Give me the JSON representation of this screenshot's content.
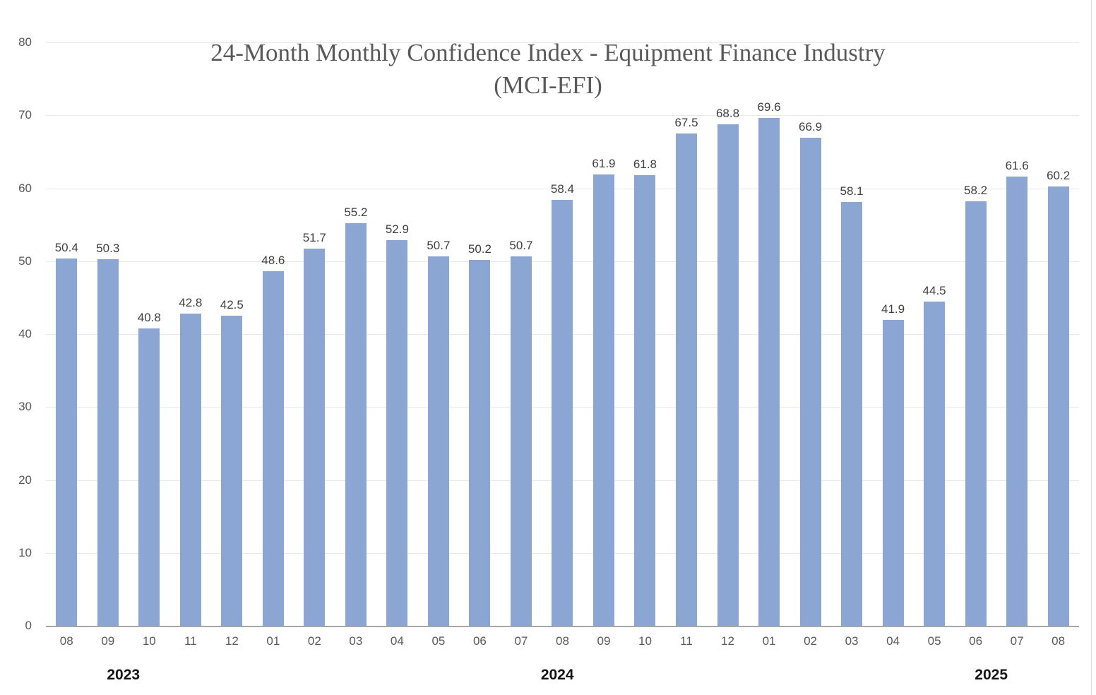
{
  "title": {
    "line1": "24-Month Monthly Confidence Index - Equipment Finance Industry",
    "line2": "(MCI-EFI)"
  },
  "chart_data": {
    "type": "bar",
    "title": "24-Month Monthly Confidence Index - Equipment Finance Industry (MCI-EFI)",
    "categories": [
      "08",
      "09",
      "10",
      "11",
      "12",
      "01",
      "02",
      "03",
      "04",
      "05",
      "06",
      "07",
      "08",
      "09",
      "10",
      "11",
      "12",
      "01",
      "02",
      "03",
      "04",
      "05",
      "06",
      "07",
      "08"
    ],
    "values": [
      50.4,
      50.3,
      40.8,
      42.8,
      42.5,
      48.6,
      51.7,
      55.2,
      52.9,
      50.7,
      50.2,
      50.7,
      58.4,
      61.9,
      61.8,
      67.5,
      68.8,
      69.6,
      66.9,
      58.1,
      41.9,
      44.5,
      58.2,
      61.6,
      60.2
    ],
    "year_groups": [
      {
        "label": "2023",
        "months": [
          "08",
          "09",
          "10",
          "11",
          "12"
        ]
      },
      {
        "label": "2024",
        "months": [
          "01",
          "02",
          "03",
          "04",
          "05",
          "06",
          "07",
          "08",
          "09",
          "10",
          "11",
          "12"
        ]
      },
      {
        "label": "2025",
        "months": [
          "01",
          "02",
          "03",
          "04",
          "05",
          "06",
          "07",
          "08"
        ]
      }
    ],
    "xlabel": "",
    "ylabel": "",
    "ylim": [
      0,
      80
    ],
    "yticks": [
      0,
      10,
      20,
      30,
      40,
      50,
      60,
      70,
      80
    ],
    "grid": true,
    "legend": false,
    "data_labels": true,
    "bar_color": "#8BA6D3",
    "title_color": "#595959",
    "axis_label_color": "#595959",
    "data_label_color": "#3F3F3F",
    "year_label_color": "#141414"
  }
}
